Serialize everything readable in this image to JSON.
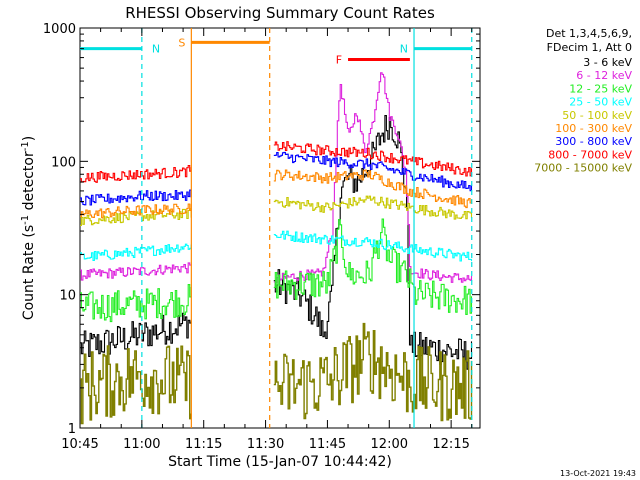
{
  "chart_data": {
    "type": "line",
    "title": "RHESSI Observing Summary Count Rates",
    "xlabel": "Start Time (15-Jan-07 10:44:42)",
    "ylabel": "Count Rate (s",
    "ylabel_sup1": "-1",
    "ylabel_mid": " detector",
    "ylabel_sup2": "-1",
    "ylabel_end": ")",
    "x_unit": "minutes",
    "xlim": [
      "10:45",
      "12:22"
    ],
    "ylim": [
      1,
      1000
    ],
    "y_scale": "log",
    "x_ticks": [
      "10:45",
      "11:00",
      "11:15",
      "11:30",
      "11:45",
      "12:00",
      "12:15"
    ],
    "y_ticks": [
      "1",
      "10",
      "100",
      "1000"
    ],
    "legend_header": [
      "Det 1,3,4,5,6,9,",
      "FDecim 1, Att 0"
    ],
    "legend_position": "top-right (outside plot)",
    "footer_timestamp": "13-Oct-2021 19:43",
    "data_gap": [
      "11:12",
      "11:32"
    ],
    "series": [
      {
        "name": "3 - 6 keV",
        "color": "#000000",
        "x": [
          "10:45",
          "11:00",
          "11:10",
          "11:33",
          "11:38",
          "11:42",
          "11:44",
          "11:46",
          "11:48",
          "11:50",
          "11:52",
          "11:54",
          "11:56",
          "11:58",
          "12:00",
          "12:02",
          "12:04",
          "12:05",
          "12:10",
          "12:20"
        ],
        "values": [
          4,
          5,
          6,
          12,
          10,
          7,
          5,
          10,
          60,
          75,
          70,
          85,
          110,
          160,
          200,
          150,
          60,
          4,
          4,
          3.5
        ]
      },
      {
        "name": "6 - 12 keV",
        "color": "#dd22dd",
        "x": [
          "10:45",
          "11:00",
          "11:10",
          "11:33",
          "11:38",
          "11:42",
          "11:44",
          "11:46",
          "11:48",
          "11:50",
          "11:52",
          "11:54",
          "11:56",
          "11:58",
          "12:00",
          "12:02",
          "12:04",
          "12:05",
          "12:10",
          "12:20"
        ],
        "values": [
          14,
          15,
          16,
          13,
          14,
          14,
          15,
          30,
          400,
          150,
          240,
          120,
          200,
          520,
          220,
          160,
          80,
          15,
          14,
          13
        ]
      },
      {
        "name": "12 - 25 keV",
        "color": "#22ee22",
        "x": [
          "10:45",
          "11:00",
          "11:10",
          "11:33",
          "11:45",
          "11:48",
          "11:50",
          "11:55",
          "11:58",
          "12:00",
          "12:04",
          "12:06",
          "12:20"
        ],
        "values": [
          8,
          8.5,
          9,
          12,
          12,
          30,
          14,
          14,
          30,
          18,
          14,
          10,
          9
        ]
      },
      {
        "name": "25 - 50 keV",
        "color": "#00ffff",
        "x": [
          "10:45",
          "11:00",
          "11:10",
          "11:33",
          "11:45",
          "11:55",
          "12:05",
          "12:20"
        ],
        "values": [
          19,
          21,
          23,
          28,
          26,
          25,
          22,
          19
        ]
      },
      {
        "name": "50 - 100 keV",
        "color": "#c8c800",
        "x": [
          "10:45",
          "11:00",
          "11:10",
          "11:33",
          "11:45",
          "11:55",
          "12:05",
          "12:20"
        ],
        "values": [
          36,
          39,
          40,
          50,
          45,
          52,
          45,
          38
        ]
      },
      {
        "name": "100 - 300 keV",
        "color": "#ff8800",
        "x": [
          "10:45",
          "11:00",
          "11:10",
          "11:33",
          "11:45",
          "11:55",
          "12:05",
          "12:20"
        ],
        "values": [
          40,
          43,
          44,
          80,
          75,
          80,
          60,
          48
        ]
      },
      {
        "name": "300 - 800 keV",
        "color": "#0000ff",
        "x": [
          "10:45",
          "11:00",
          "11:10",
          "11:33",
          "11:45",
          "11:55",
          "12:05",
          "12:20"
        ],
        "values": [
          50,
          55,
          55,
          110,
          100,
          95,
          80,
          63
        ]
      },
      {
        "name": "800 - 7000 keV",
        "color": "#ff0000",
        "x": [
          "10:45",
          "11:00",
          "11:10",
          "11:33",
          "11:45",
          "11:55",
          "12:05",
          "12:20"
        ],
        "values": [
          75,
          80,
          83,
          130,
          120,
          115,
          100,
          83
        ]
      },
      {
        "name": "7000 - 15000 keV",
        "color": "#808000",
        "x": [
          "10:45",
          "11:00",
          "11:10",
          "11:33",
          "11:45",
          "11:55",
          "12:05",
          "12:20"
        ],
        "values": [
          2,
          2.5,
          2.2,
          2,
          2.2,
          3.5,
          2.2,
          2
        ]
      }
    ],
    "flag_bars": [
      {
        "label": "N",
        "color": "#00e0e0",
        "start": "10:45",
        "end": "11:00",
        "level": 700
      },
      {
        "label": "N",
        "color": "#00e0e0",
        "start": "12:06",
        "end": "12:20",
        "level": 700
      },
      {
        "label": "S",
        "color": "#ff8800",
        "start": "11:12",
        "end": "11:31",
        "level": 780
      },
      {
        "label": "F",
        "color": "#ff0000",
        "start": "11:50",
        "end": "12:05",
        "level": 580
      }
    ],
    "vertical_markers": [
      {
        "color": "#00e0e0",
        "at": "11:00",
        "style": "dashed"
      },
      {
        "color": "#00e0e0",
        "at": "12:06",
        "style": "solid"
      },
      {
        "color": "#00e0e0",
        "at": "12:20",
        "style": "dashed"
      },
      {
        "color": "#ff8800",
        "at": "11:12",
        "style": "solid"
      },
      {
        "color": "#ff8800",
        "at": "11:31",
        "style": "dashed"
      }
    ]
  }
}
